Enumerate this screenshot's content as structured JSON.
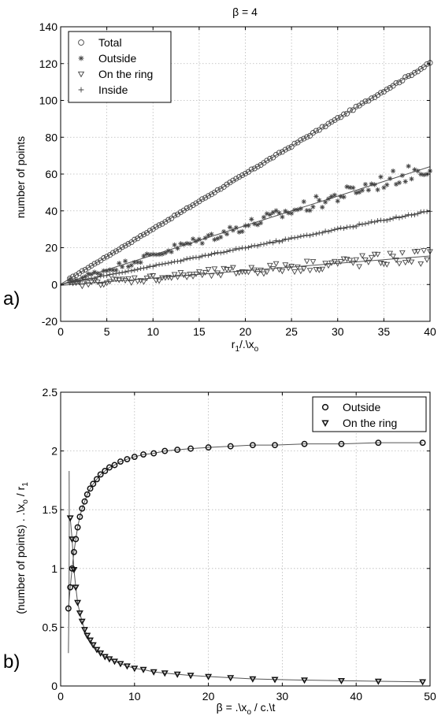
{
  "colors": {
    "axis": "#000000",
    "grid": "#b8b8b8",
    "markers": "#444444",
    "fit_lines": "#555555"
  },
  "chart_data": [
    {
      "panel_label": "a)",
      "type": "scatter",
      "title": "β = 4",
      "xlabel": "r",
      "xlabel_sub": "1",
      "xlabel_tail": "/.\\x",
      "xlabel_sub2": "o",
      "ylabel": "number of points",
      "xlim": [
        0,
        40
      ],
      "ylim": [
        -20,
        140
      ],
      "xticks": [
        "0",
        "5",
        "10",
        "15",
        "20",
        "25",
        "30",
        "35",
        "40"
      ],
      "yticks": [
        "-20",
        "0",
        "20",
        "40",
        "60",
        "80",
        "100",
        "120",
        "140"
      ],
      "grid": true,
      "legend_position": "top-left",
      "x_range_of_points": [
        1,
        40
      ],
      "points_per_series": 118,
      "series": [
        {
          "name": "Total",
          "marker": "circle",
          "trend": "linear",
          "fit": [
            0.2,
            3.0
          ],
          "approx_at": [
            [
              1,
              3
            ],
            [
              20,
              60
            ],
            [
              40,
              120
            ]
          ]
        },
        {
          "name": "Outside",
          "marker": "asterisk",
          "trend": "linear",
          "fit": [
            0,
            1.6
          ],
          "approx_at": [
            [
              1,
              2
            ],
            [
              20,
              32
            ],
            [
              40,
              64
            ]
          ]
        },
        {
          "name": "On the ring",
          "marker": "triangle-down",
          "trend": "linear",
          "fit": [
            -0.5,
            0.4
          ],
          "approx_at": [
            [
              1,
              0
            ],
            [
              20,
              7.5
            ],
            [
              40,
              15.5
            ]
          ]
        },
        {
          "name": "Inside",
          "marker": "plus",
          "trend": "linear",
          "fit": [
            0,
            1.0
          ],
          "approx_at": [
            [
              1,
              1
            ],
            [
              20,
              20
            ],
            [
              40,
              40
            ]
          ]
        }
      ]
    },
    {
      "panel_label": "b)",
      "type": "scatter",
      "title": "",
      "xlabel": "β = .\\x",
      "xlabel_sub": "o",
      "xlabel_tail": " / c.\\t",
      "ylabel": "(number of points) . .\\x",
      "ylabel_sub": "o",
      "ylabel_tail": " / r",
      "ylabel_sub2": "1",
      "xlim": [
        0,
        50
      ],
      "ylim": [
        0,
        2.5
      ],
      "xticks": [
        "0",
        "10",
        "20",
        "30",
        "40",
        "50"
      ],
      "yticks": [
        "0",
        "0.5",
        "1",
        "1.5",
        "2",
        "2.5"
      ],
      "grid": true,
      "legend_position": "top-right",
      "series": [
        {
          "name": "Outside",
          "marker": "circle",
          "x": [
            1.05,
            1.3,
            1.55,
            1.8,
            2.05,
            2.3,
            2.6,
            2.9,
            3.25,
            3.6,
            4.0,
            4.4,
            4.9,
            5.4,
            6.0,
            6.6,
            7.3,
            8.1,
            9.0,
            10.0,
            11.2,
            12.6,
            14.1,
            15.8,
            17.6,
            20.0,
            23.0,
            26.0,
            29.0,
            33.0,
            38.0,
            43.0,
            49.0
          ],
          "y": [
            0.66,
            0.84,
            1.0,
            1.14,
            1.25,
            1.35,
            1.44,
            1.51,
            1.57,
            1.63,
            1.68,
            1.72,
            1.76,
            1.8,
            1.83,
            1.86,
            1.88,
            1.91,
            1.93,
            1.95,
            1.97,
            1.98,
            2.0,
            2.01,
            2.02,
            2.03,
            2.04,
            2.05,
            2.05,
            2.06,
            2.06,
            2.07,
            2.07
          ]
        },
        {
          "name": "On the ring",
          "marker": "triangle-down",
          "x": [
            1.3,
            1.55,
            1.8,
            2.05,
            2.3,
            2.6,
            2.9,
            3.25,
            3.6,
            4.0,
            4.4,
            4.9,
            5.4,
            6.0,
            6.6,
            7.3,
            8.1,
            9.0,
            10.0,
            11.2,
            12.6,
            14.1,
            15.8,
            17.6,
            20.0,
            23.0,
            26.0,
            29.0,
            33.0,
            38.0,
            43.0,
            49.0
          ],
          "y": [
            1.43,
            1.25,
            0.99,
            0.84,
            0.71,
            0.62,
            0.55,
            0.48,
            0.43,
            0.39,
            0.35,
            0.31,
            0.28,
            0.25,
            0.23,
            0.21,
            0.19,
            0.17,
            0.15,
            0.14,
            0.12,
            0.11,
            0.1,
            0.09,
            0.08,
            0.07,
            0.06,
            0.055,
            0.05,
            0.045,
            0.04,
            0.035
          ]
        }
      ]
    }
  ]
}
